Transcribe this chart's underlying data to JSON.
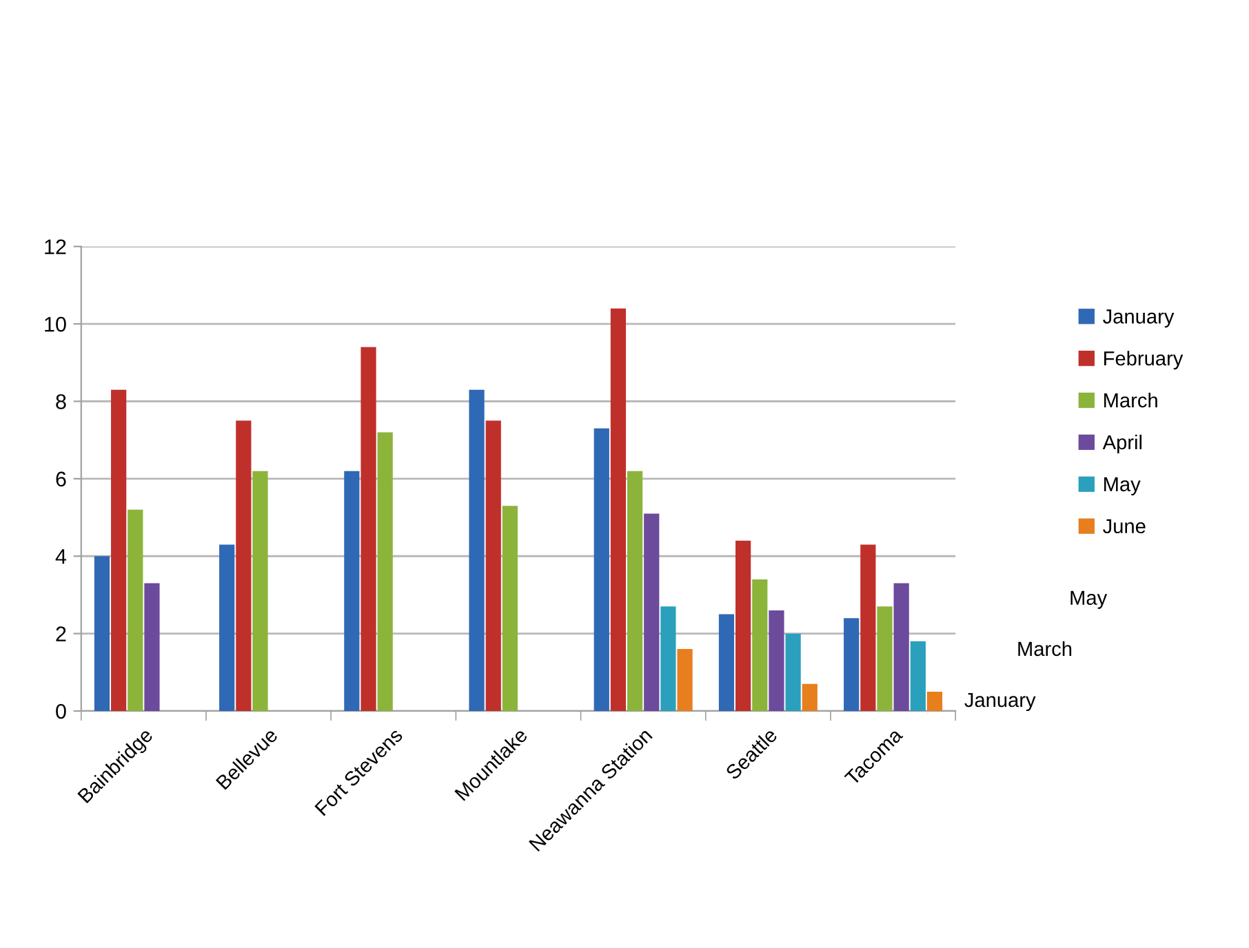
{
  "chart_data": {
    "type": "bar",
    "categories": [
      "Bainbridge",
      "Bellevue",
      "Fort Stevens",
      "Mountlake",
      "Neawanna Station",
      "Seattle",
      "Tacoma"
    ],
    "series": [
      {
        "name": "January",
        "color": "#2f68b5",
        "values": [
          4,
          4.3,
          6.2,
          8.3,
          7.3,
          2.5,
          2.4
        ]
      },
      {
        "name": "February",
        "color": "#c0302b",
        "values": [
          8.3,
          7.5,
          9.4,
          7.5,
          10.4,
          4.4,
          4.3
        ]
      },
      {
        "name": "March",
        "color": "#8cb43b",
        "values": [
          5.2,
          6.2,
          7.2,
          5.3,
          6.2,
          3.4,
          2.7
        ]
      },
      {
        "name": "April",
        "color": "#6c4a9c",
        "values": [
          3.3,
          null,
          null,
          null,
          5.1,
          2.6,
          3.3
        ]
      },
      {
        "name": "May",
        "color": "#2aa0bd",
        "values": [
          null,
          null,
          null,
          null,
          2.7,
          2.0,
          1.8
        ]
      },
      {
        "name": "June",
        "color": "#e77f1e",
        "values": [
          null,
          null,
          null,
          null,
          1.6,
          0.7,
          0.5
        ]
      }
    ],
    "ylim": [
      0,
      12
    ],
    "yticks": [
      0,
      2,
      4,
      6,
      8,
      10,
      12
    ],
    "grid": "y",
    "legend": "right",
    "annotations": [
      "January",
      "March",
      "May"
    ]
  }
}
